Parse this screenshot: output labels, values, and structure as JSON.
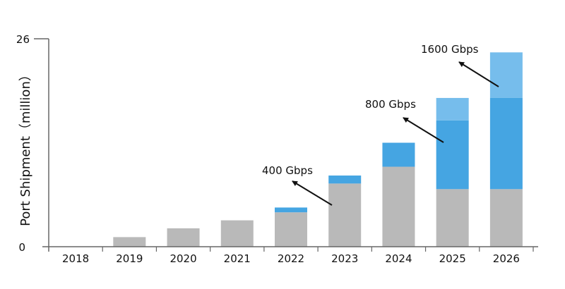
{
  "chart_data": {
    "type": "bar",
    "stacked": true,
    "title": "",
    "xlabel": "",
    "ylabel": "Port Shipment（million）",
    "ylim": [
      0,
      26
    ],
    "yticks": [
      "0",
      "26"
    ],
    "grid": false,
    "legend": "none",
    "categories": [
      "2018",
      "2019",
      "2020",
      "2021",
      "2022",
      "2023",
      "2024",
      "2025",
      "2026"
    ],
    "series": [
      {
        "color": "#b9b9b9",
        "values": [
          0,
          1.2,
          2.3,
          3.3,
          4.3,
          7.9,
          10.0,
          7.2,
          7.2
        ]
      },
      {
        "color": "#45a5e2",
        "values": [
          0,
          0,
          0,
          0,
          0.6,
          1.0,
          3.0,
          8.6,
          11.4
        ]
      },
      {
        "color": "#76bdec",
        "values": [
          0,
          0,
          0,
          0,
          0,
          0,
          0,
          2.8,
          5.7
        ]
      }
    ],
    "annotations": [
      {
        "text": "400 Gbps",
        "points_to_category": "2023"
      },
      {
        "text": "800 Gbps",
        "points_to_category": "2025"
      },
      {
        "text": "1600 Gbps",
        "points_to_category": "2026"
      }
    ]
  }
}
